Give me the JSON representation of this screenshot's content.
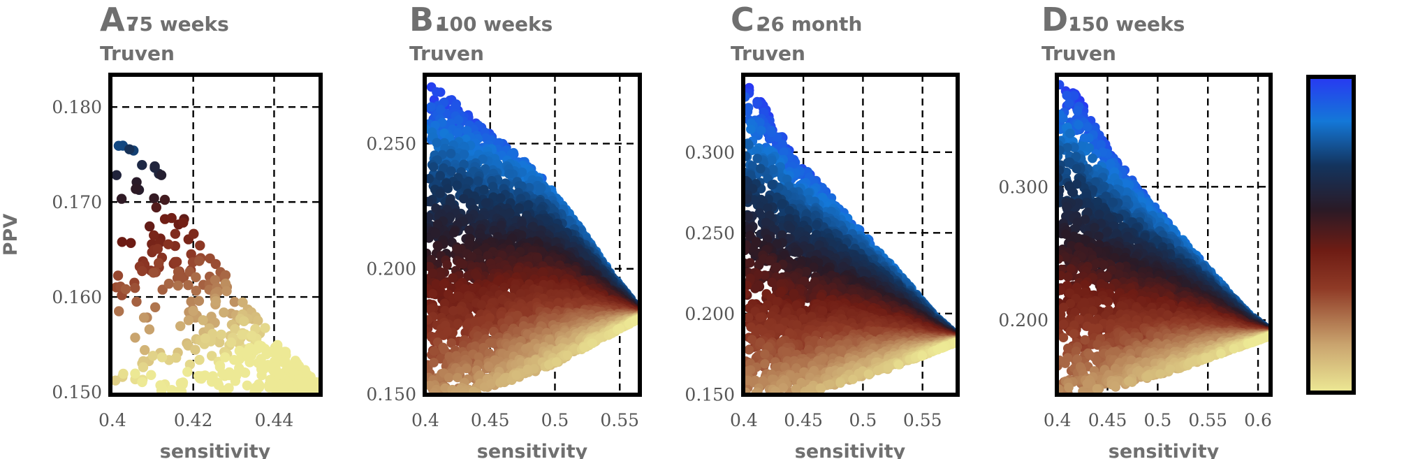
{
  "chart_data": [
    {
      "type": "scatter",
      "letter": "A.",
      "period": "75 weeks",
      "subtitle": "Truven",
      "xlabel": "sensitivity",
      "ylabel": "PPV",
      "xlim": [
        0.3995,
        0.4515
      ],
      "ylim": [
        0.1497,
        0.1834
      ],
      "xticks": [
        0.4,
        0.42,
        0.44
      ],
      "xtick_labels": [
        "0.4",
        "0.42",
        "0.44"
      ],
      "yticks": [
        0.15,
        0.16,
        0.17,
        0.18
      ],
      "ytick_labels": [
        "0.150",
        "0.160",
        "0.170",
        "0.180"
      ],
      "grid": true,
      "point_count": 380,
      "seed": 11,
      "x_min": 0.4,
      "x_max": 0.451,
      "y_min": 0.15,
      "y_max": 0.183,
      "upper_edge": [
        [
          0.4,
          0.183
        ],
        [
          0.404,
          0.176
        ],
        [
          0.412,
          0.175
        ],
        [
          0.414,
          0.17
        ],
        [
          0.421,
          0.167
        ],
        [
          0.43,
          0.161
        ],
        [
          0.441,
          0.155
        ],
        [
          0.451,
          0.151
        ]
      ],
      "lower_edge": [
        [
          0.4,
          0.15
        ],
        [
          0.451,
          0.15
        ]
      ],
      "color_scale": "y"
    },
    {
      "type": "scatter",
      "letter": "B.",
      "period": "100 weeks",
      "subtitle": "Truven",
      "xlabel": "sensitivity",
      "ylabel": "",
      "xlim": [
        0.3995,
        0.5655
      ],
      "ylim": [
        0.1497,
        0.2775
      ],
      "xticks": [
        0.4,
        0.45,
        0.5,
        0.55
      ],
      "xtick_labels": [
        "0.4",
        "0.45",
        "0.5",
        "0.55"
      ],
      "yticks": [
        0.15,
        0.2,
        0.25
      ],
      "ytick_labels": [
        "0.150",
        "0.200",
        "0.250"
      ],
      "grid": true,
      "point_count": 3800,
      "seed": 23,
      "x_min": 0.4,
      "x_max": 0.565,
      "y_min": 0.15,
      "y_max": 0.275,
      "upper_edge": [
        [
          0.4,
          0.275
        ],
        [
          0.42,
          0.268
        ],
        [
          0.44,
          0.258
        ],
        [
          0.46,
          0.25
        ],
        [
          0.49,
          0.237
        ],
        [
          0.52,
          0.216
        ],
        [
          0.545,
          0.197
        ],
        [
          0.565,
          0.184
        ]
      ],
      "lower_edge": [
        [
          0.4,
          0.15
        ],
        [
          0.44,
          0.15
        ],
        [
          0.5,
          0.162
        ],
        [
          0.565,
          0.18
        ]
      ],
      "color_scale": "band"
    },
    {
      "type": "scatter",
      "letter": "C.",
      "period": "26 month",
      "subtitle": "Truven",
      "xlabel": "sensitivity",
      "ylabel": "",
      "xlim": [
        0.3995,
        0.5795
      ],
      "ylim": [
        0.1497,
        0.348
      ],
      "xticks": [
        0.4,
        0.45,
        0.5,
        0.55
      ],
      "xtick_labels": [
        "0.4",
        "0.45",
        "0.5",
        "0.55"
      ],
      "yticks": [
        0.15,
        0.2,
        0.25,
        0.3
      ],
      "ytick_labels": [
        "0.150",
        "0.200",
        "0.250",
        "0.300"
      ],
      "grid": true,
      "point_count": 4000,
      "seed": 37,
      "x_min": 0.4,
      "x_max": 0.578,
      "y_min": 0.15,
      "y_max": 0.347,
      "upper_edge": [
        [
          0.4,
          0.347
        ],
        [
          0.42,
          0.325
        ],
        [
          0.44,
          0.3
        ],
        [
          0.47,
          0.275
        ],
        [
          0.5,
          0.25
        ],
        [
          0.53,
          0.225
        ],
        [
          0.56,
          0.199
        ],
        [
          0.578,
          0.187
        ]
      ],
      "lower_edge": [
        [
          0.4,
          0.15
        ],
        [
          0.45,
          0.15
        ],
        [
          0.52,
          0.165
        ],
        [
          0.578,
          0.182
        ]
      ],
      "color_scale": "band"
    },
    {
      "type": "scatter",
      "letter": "D.",
      "period": "150 weeks",
      "subtitle": "Truven",
      "xlabel": "sensitivity",
      "ylabel": "",
      "xlim": [
        0.3995,
        0.6125
      ],
      "ylim": [
        0.144,
        0.384
      ],
      "xticks": [
        0.4,
        0.45,
        0.5,
        0.55,
        0.6
      ],
      "xtick_labels": [
        "0.4",
        "0.45",
        "0.5",
        "0.55",
        "0.6"
      ],
      "yticks": [
        0.2,
        0.3
      ],
      "ytick_labels": [
        "0.200",
        "0.300"
      ],
      "grid": true,
      "point_count": 4200,
      "seed": 53,
      "x_min": 0.4,
      "x_max": 0.612,
      "y_min": 0.145,
      "y_max": 0.383,
      "upper_edge": [
        [
          0.4,
          0.383
        ],
        [
          0.42,
          0.37
        ],
        [
          0.45,
          0.33
        ],
        [
          0.48,
          0.3
        ],
        [
          0.52,
          0.265
        ],
        [
          0.56,
          0.23
        ],
        [
          0.59,
          0.205
        ],
        [
          0.612,
          0.192
        ]
      ],
      "lower_edge": [
        [
          0.4,
          0.145
        ],
        [
          0.44,
          0.145
        ],
        [
          0.52,
          0.163
        ],
        [
          0.612,
          0.188
        ]
      ],
      "color_scale": "band"
    }
  ],
  "colorbar": {
    "stops": [
      "#ede995",
      "#caa56f",
      "#8f3a26",
      "#6e1c14",
      "#2a1a26",
      "#13345e",
      "#1478d8",
      "#2838f2"
    ],
    "stop_positions": [
      0.0,
      0.15,
      0.33,
      0.45,
      0.58,
      0.72,
      0.86,
      1.0
    ]
  }
}
